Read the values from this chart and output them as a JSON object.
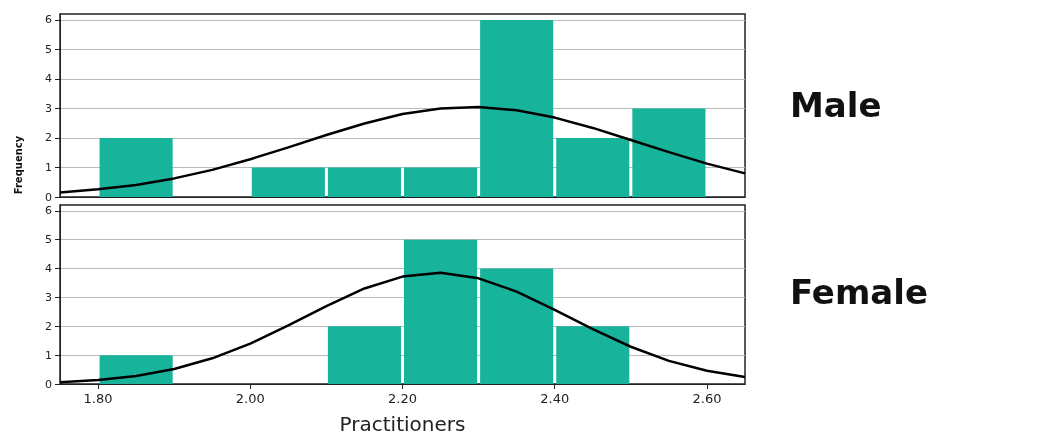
{
  "chart_data": [
    {
      "type": "histogram",
      "ylabel": "Frequency",
      "annotations": [
        "Male"
      ],
      "bins": [
        1.8,
        1.9,
        2.0,
        2.1,
        2.2,
        2.3,
        2.4,
        2.5,
        2.6
      ],
      "values": [
        2,
        0,
        1,
        1,
        1,
        6,
        2,
        3
      ],
      "color": "#17b39b",
      "series": [
        {
          "type": "line",
          "color": "#000000",
          "x": [
            1.75,
            1.8,
            1.85,
            1.9,
            1.95,
            2.0,
            2.05,
            2.1,
            2.15,
            2.2,
            2.25,
            2.3,
            2.35,
            2.4,
            2.45,
            2.5,
            2.55,
            2.6,
            2.65
          ],
          "values": [
            0.15,
            0.26,
            0.41,
            0.63,
            0.92,
            1.28,
            1.68,
            2.1,
            2.49,
            2.81,
            3.0,
            3.05,
            2.94,
            2.69,
            2.34,
            1.93,
            1.52,
            1.13,
            0.8
          ]
        }
      ],
      "xlim": [
        1.75,
        2.65
      ],
      "ylim": [
        0,
        6.2
      ],
      "yticks": [
        0,
        1,
        2,
        3,
        4,
        5,
        6
      ],
      "grid": "y",
      "tick_labels": "y"
    },
    {
      "type": "histogram",
      "xlabel": "Practitioners",
      "annotations": [
        "Female"
      ],
      "bins": [
        1.8,
        1.9,
        2.0,
        2.1,
        2.2,
        2.3,
        2.4,
        2.5,
        2.6
      ],
      "values": [
        1,
        0,
        0,
        2,
        5,
        4,
        2,
        0
      ],
      "color": "#17b39b",
      "series": [
        {
          "type": "line",
          "color": "#000000",
          "x": [
            1.75,
            1.8,
            1.85,
            1.9,
            1.95,
            2.0,
            2.05,
            2.1,
            2.15,
            2.2,
            2.25,
            2.3,
            2.35,
            2.4,
            2.45,
            2.5,
            2.55,
            2.6,
            2.65
          ],
          "values": [
            0.06,
            0.14,
            0.28,
            0.52,
            0.89,
            1.4,
            2.03,
            2.7,
            3.31,
            3.72,
            3.85,
            3.66,
            3.2,
            2.57,
            1.9,
            1.29,
            0.8,
            0.46,
            0.24
          ]
        }
      ],
      "xlim": [
        1.75,
        2.65
      ],
      "xticks": [
        {
          "value": 1.8,
          "label": "1.80"
        },
        {
          "value": 2.0,
          "label": "2.00"
        },
        {
          "value": 2.2,
          "label": "2.20"
        },
        {
          "value": 2.4,
          "label": "2.40"
        },
        {
          "value": 2.6,
          "label": "2.60"
        }
      ],
      "ylim": [
        0,
        6.2
      ],
      "yticks": [
        0,
        1,
        2,
        3,
        4,
        5,
        6
      ],
      "grid": "y"
    }
  ]
}
